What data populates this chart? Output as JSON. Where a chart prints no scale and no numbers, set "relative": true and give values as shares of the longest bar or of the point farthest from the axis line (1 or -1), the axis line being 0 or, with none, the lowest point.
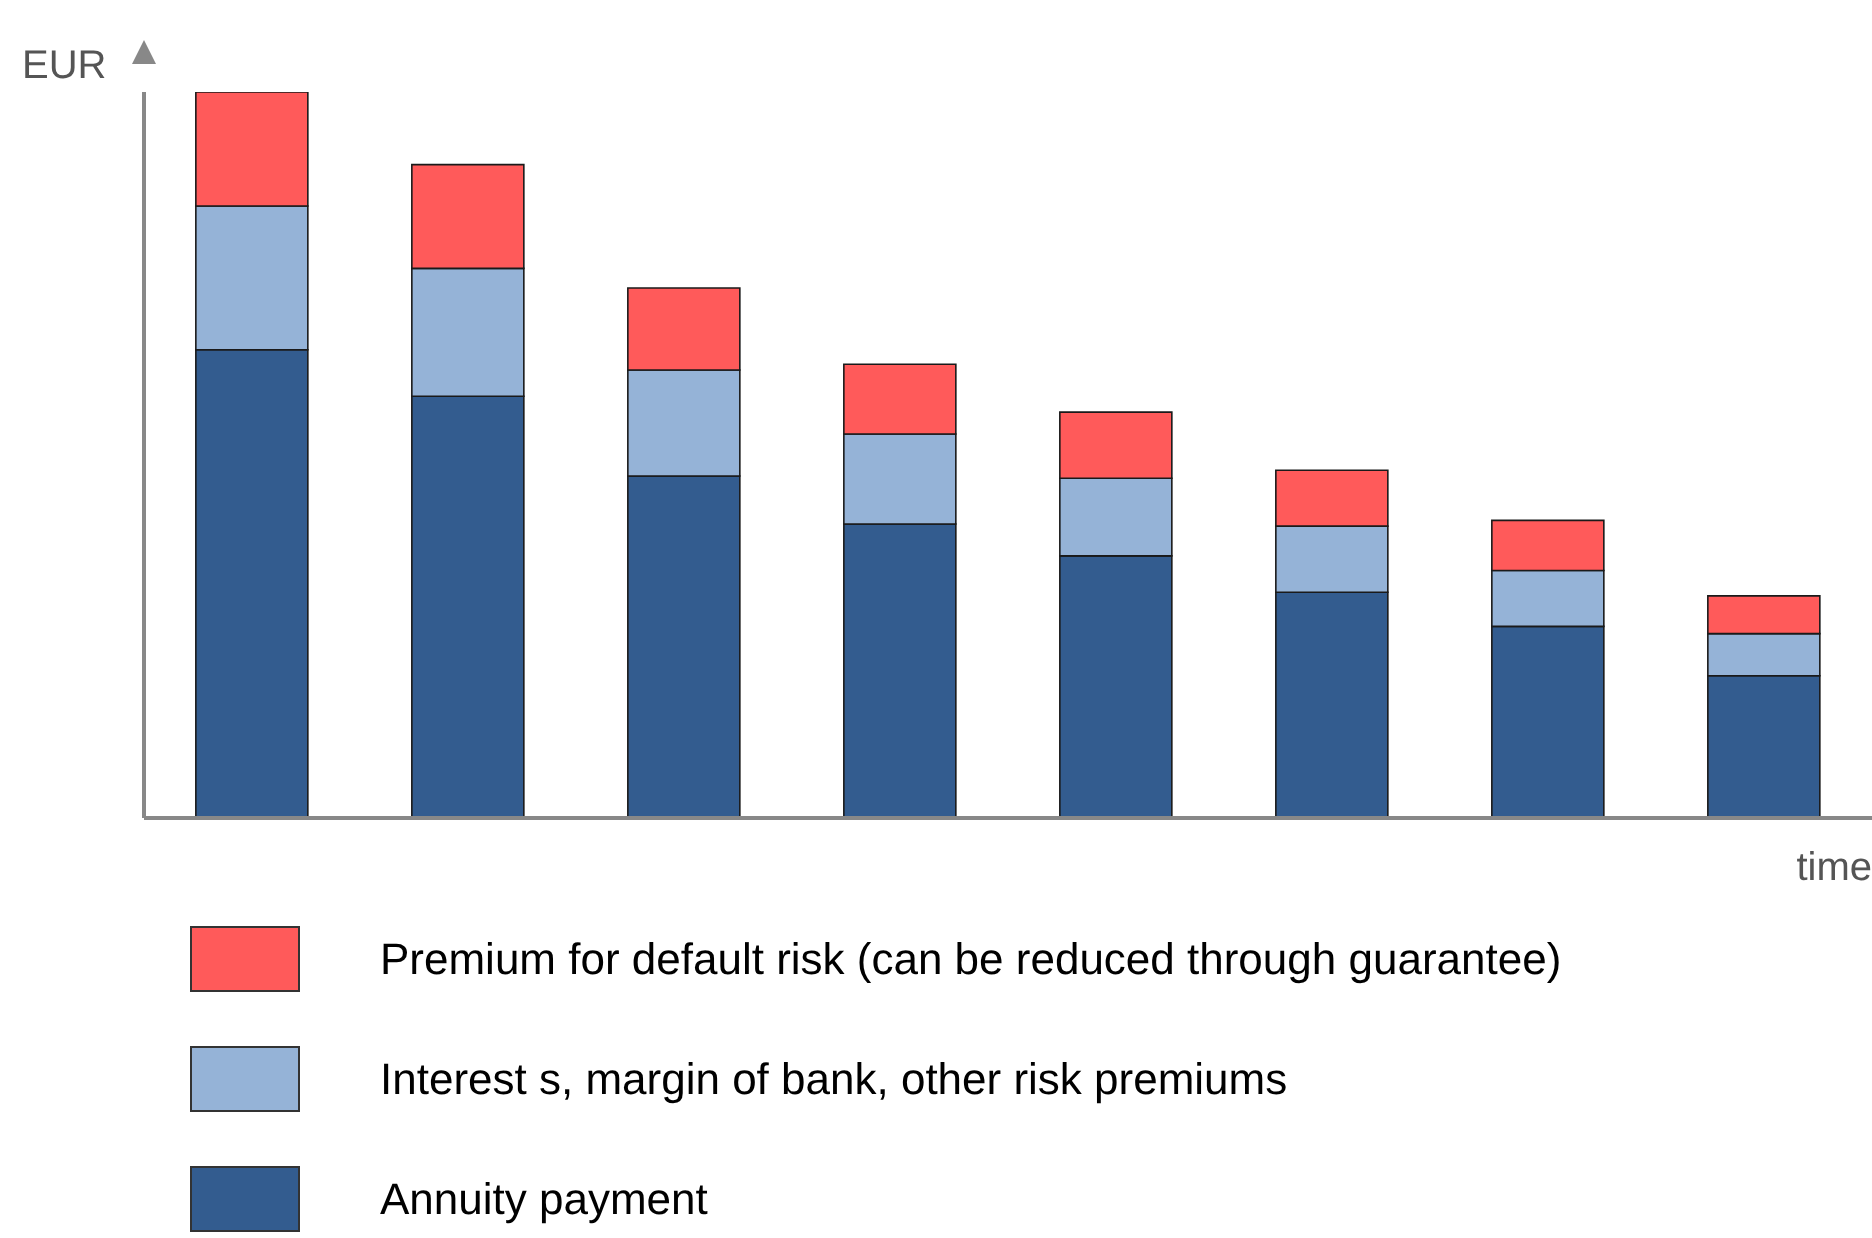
{
  "chart_data": {
    "type": "bar",
    "stacked": true,
    "relative": true,
    "ylabel": "EUR",
    "xlabel": "time",
    "categories": [
      null,
      null,
      null,
      null,
      null,
      null,
      null,
      null
    ],
    "grid": false,
    "legend": "bottom",
    "series": [
      {
        "name": "Annuity payment",
        "color": "#335c8f",
        "values": [
          0.645,
          0.581,
          0.471,
          0.405,
          0.361,
          0.311,
          0.264,
          0.196
        ]
      },
      {
        "name": "Interest s, margin of bank, other risk premiums",
        "color": "#95b3d7",
        "values": [
          0.198,
          0.176,
          0.146,
          0.124,
          0.107,
          0.091,
          0.077,
          0.058
        ]
      },
      {
        "name": "Premium for default risk (can be reduced through guarantee)",
        "color": "#ff5a5a",
        "values": [
          0.157,
          0.143,
          0.113,
          0.096,
          0.091,
          0.077,
          0.069,
          0.052
        ]
      }
    ]
  }
}
